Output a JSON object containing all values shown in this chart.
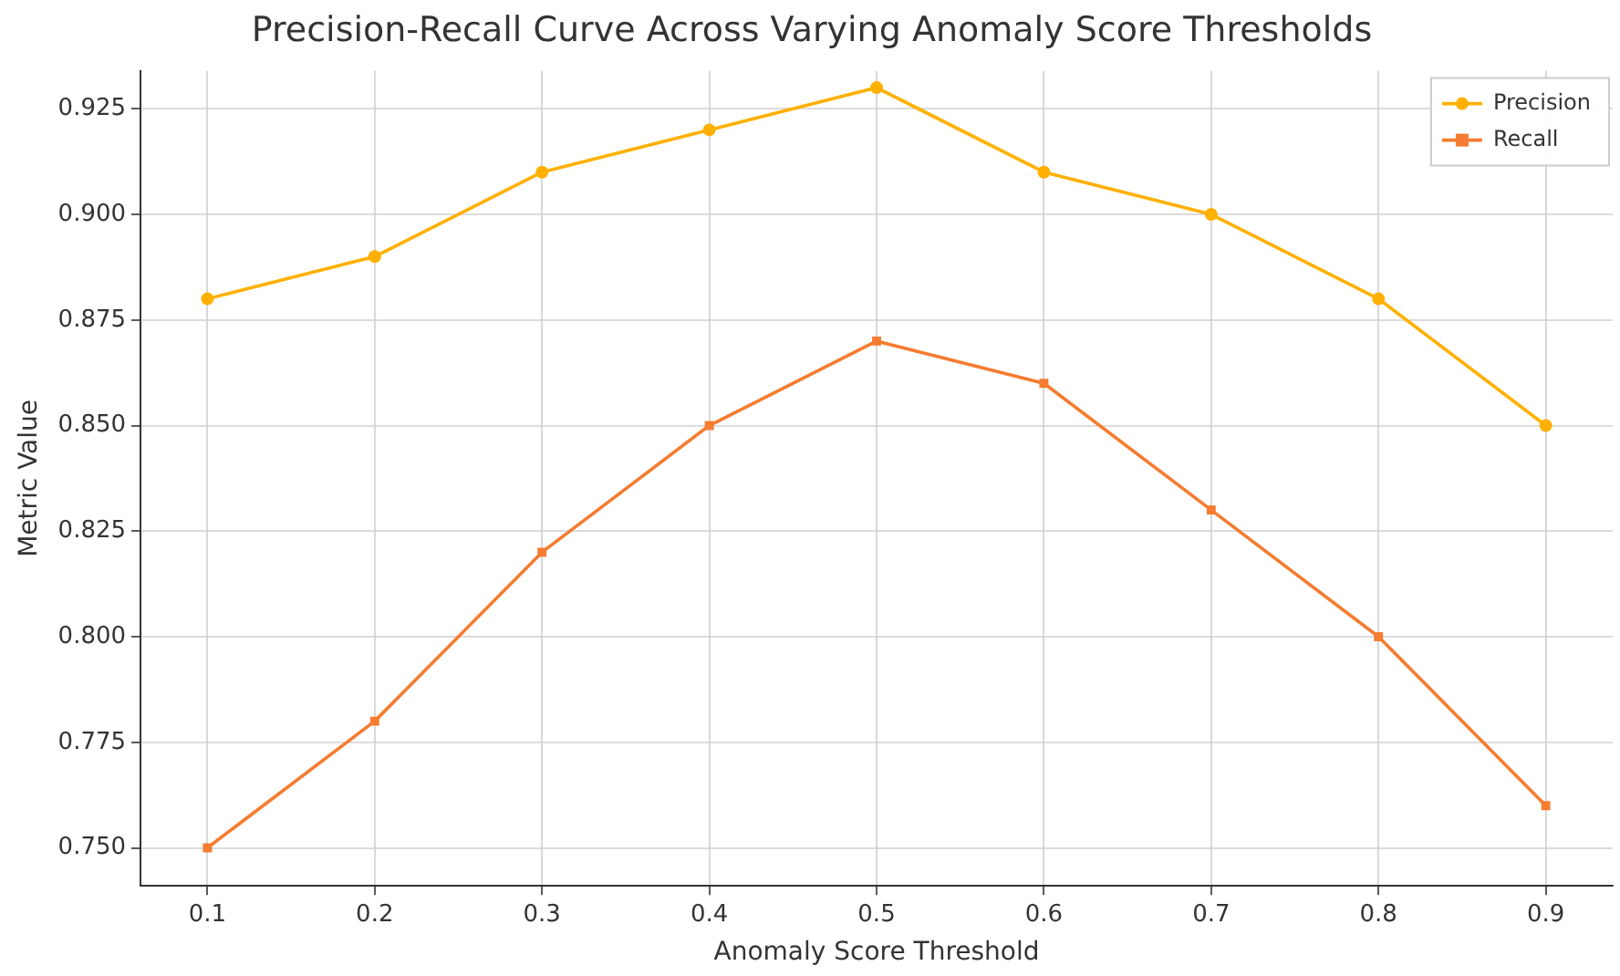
{
  "chart_data": {
    "type": "line",
    "title": "Precision-Recall Curve Across Varying Anomaly Score Thresholds",
    "xlabel": "Anomaly Score Threshold",
    "ylabel": "Metric Value",
    "x": [
      0.1,
      0.2,
      0.3,
      0.4,
      0.5,
      0.6,
      0.7,
      0.8,
      0.9
    ],
    "series": [
      {
        "name": "Precision",
        "color": "#ffb000",
        "marker": "circle",
        "values": [
          0.88,
          0.89,
          0.91,
          0.92,
          0.93,
          0.91,
          0.9,
          0.88,
          0.85
        ]
      },
      {
        "name": "Recall",
        "color": "#f57c30",
        "marker": "square",
        "values": [
          0.75,
          0.78,
          0.82,
          0.85,
          0.87,
          0.86,
          0.83,
          0.8,
          0.76
        ]
      }
    ],
    "xlim": [
      0.06,
      0.94
    ],
    "xticks": [
      0.1,
      0.2,
      0.3,
      0.4,
      0.5,
      0.6,
      0.7,
      0.8,
      0.9
    ],
    "ylim": [
      0.741,
      0.934
    ],
    "yticks": [
      {
        "value": 0.75,
        "label": "0.750"
      },
      {
        "value": 0.775,
        "label": "0.775"
      },
      {
        "value": 0.8,
        "label": "0.800"
      },
      {
        "value": 0.825,
        "label": "0.825"
      },
      {
        "value": 0.85,
        "label": "0.850"
      },
      {
        "value": 0.875,
        "label": "0.875"
      },
      {
        "value": 0.9,
        "label": "0.900"
      },
      {
        "value": 0.925,
        "label": "0.925"
      }
    ],
    "grid": true,
    "legend": "top right",
    "line_style": "solid"
  }
}
